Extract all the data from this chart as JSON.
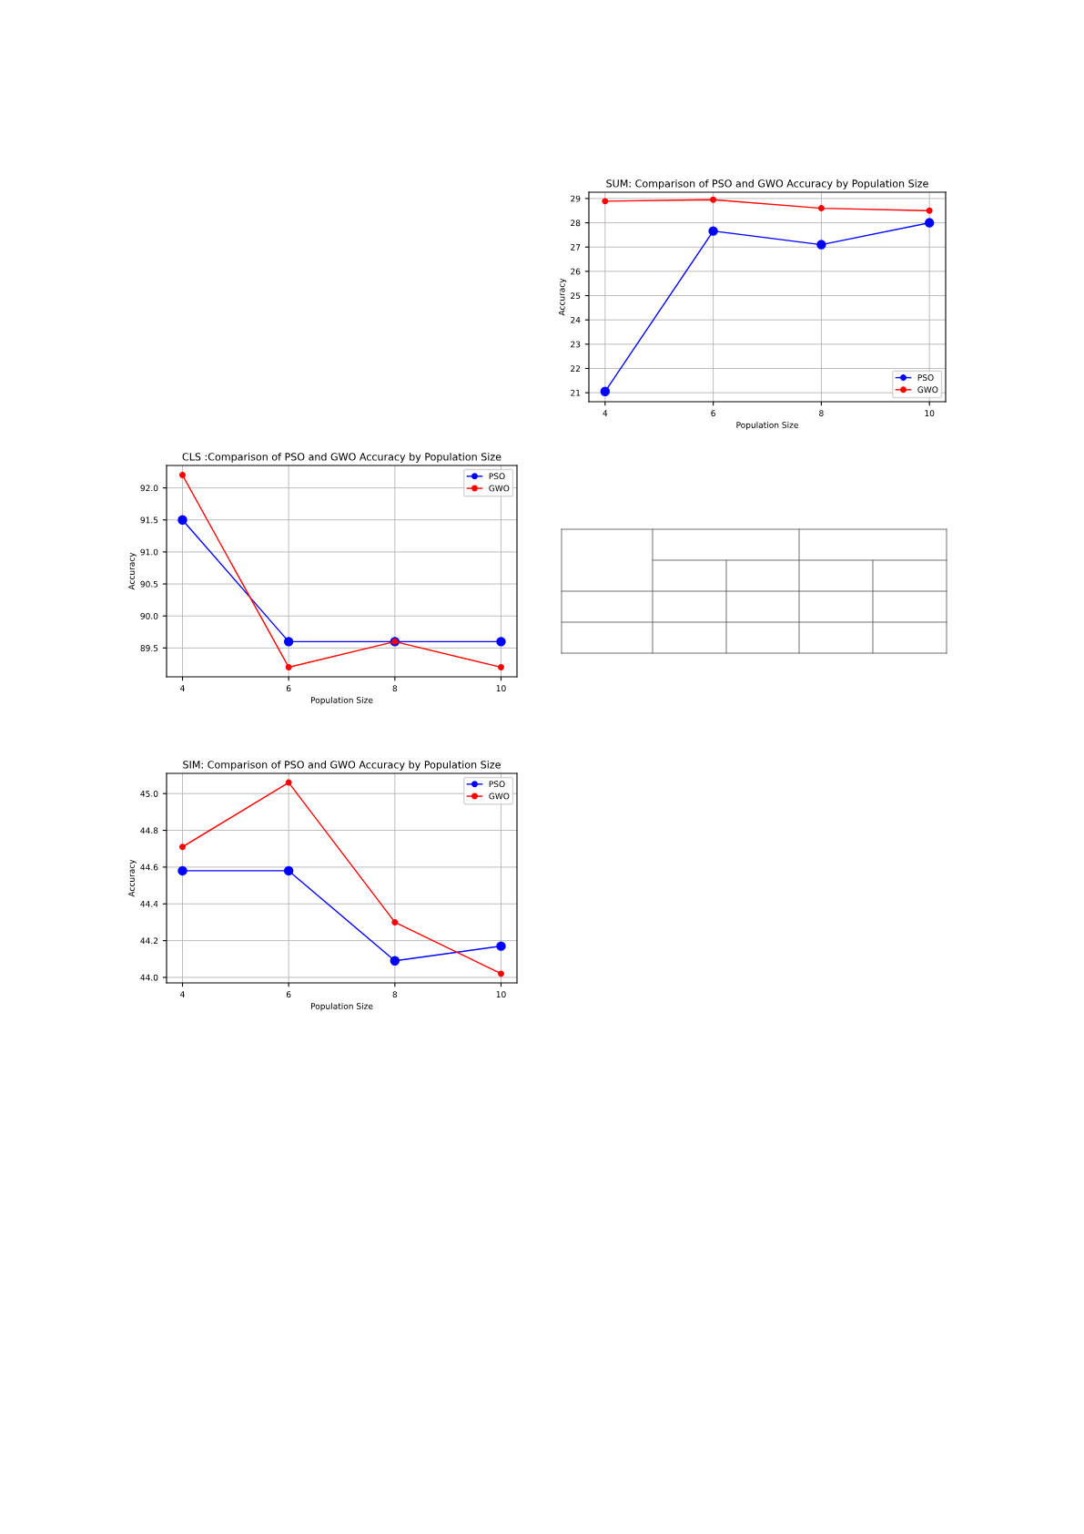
{
  "chart_data": [
    {
      "type": "line",
      "title": "SUM: Comparison of PSO and GWO Accuracy by Population Size",
      "xlabel": "Population Size",
      "ylabel": "Accuracy",
      "x": [
        4,
        6,
        8,
        10
      ],
      "series": [
        {
          "name": "PSO",
          "color": "#0000ff",
          "values": [
            21.05,
            27.66,
            27.1,
            28.0
          ]
        },
        {
          "name": "GWO",
          "color": "#ff0000",
          "values": [
            28.89,
            28.95,
            28.6,
            28.5
          ]
        }
      ],
      "xlim": [
        3.7,
        10.3
      ],
      "xticks": [
        4,
        6,
        8,
        10
      ],
      "ylim": [
        20.63,
        29.26
      ],
      "yticks": [
        21,
        22,
        23,
        24,
        25,
        26,
        27,
        28,
        29
      ],
      "grid": true,
      "legend": "bottom right",
      "marker": "circle",
      "line_style": "solid"
    },
    {
      "type": "line",
      "title": "CLS :Comparison of PSO and GWO Accuracy by Population Size",
      "xlabel": "Population Size",
      "ylabel": "Accuracy",
      "x": [
        4,
        6,
        8,
        10
      ],
      "series": [
        {
          "name": "PSO",
          "color": "#0000ff",
          "values": [
            91.5,
            89.6,
            89.6,
            89.6
          ]
        },
        {
          "name": "GWO",
          "color": "#ff0000",
          "values": [
            92.2,
            89.2,
            89.6,
            89.2
          ]
        }
      ],
      "xlim": [
        3.7,
        10.3
      ],
      "xticks": [
        4,
        6,
        8,
        10
      ],
      "ylim": [
        89.05,
        92.35
      ],
      "yticks": [
        {
          "value": 89.5,
          "label": "89.5"
        },
        {
          "value": 90.0,
          "label": "90.0"
        },
        {
          "value": 90.5,
          "label": "90.5"
        },
        {
          "value": 91.0,
          "label": "91.0"
        },
        {
          "value": 91.5,
          "label": "91.5"
        },
        {
          "value": 92.0,
          "label": "92.0"
        }
      ],
      "grid": true,
      "legend": "top right",
      "marker": "circle",
      "line_style": "solid"
    },
    {
      "type": "line",
      "title": "SIM: Comparison of PSO and GWO Accuracy by Population Size",
      "xlabel": "Population Size",
      "ylabel": "Accuracy",
      "x": [
        4,
        6,
        8,
        10
      ],
      "series": [
        {
          "name": "PSO",
          "color": "#0000ff",
          "values": [
            44.58,
            44.58,
            44.09,
            44.17
          ]
        },
        {
          "name": "GWO",
          "color": "#ff0000",
          "values": [
            44.71,
            45.06,
            44.3,
            44.02
          ]
        }
      ],
      "xlim": [
        3.7,
        10.3
      ],
      "xticks": [
        4,
        6,
        8,
        10
      ],
      "ylim": [
        43.97,
        45.11
      ],
      "yticks": [
        {
          "value": 44.0,
          "label": "44.0"
        },
        {
          "value": 44.2,
          "label": "44.2"
        },
        {
          "value": 44.4,
          "label": "44.4"
        },
        {
          "value": 44.6,
          "label": "44.6"
        },
        {
          "value": 44.8,
          "label": "44.8"
        },
        {
          "value": 45.0,
          "label": "45.0"
        }
      ],
      "grid": true,
      "legend": "top right",
      "marker": "circle",
      "line_style": "solid"
    }
  ]
}
